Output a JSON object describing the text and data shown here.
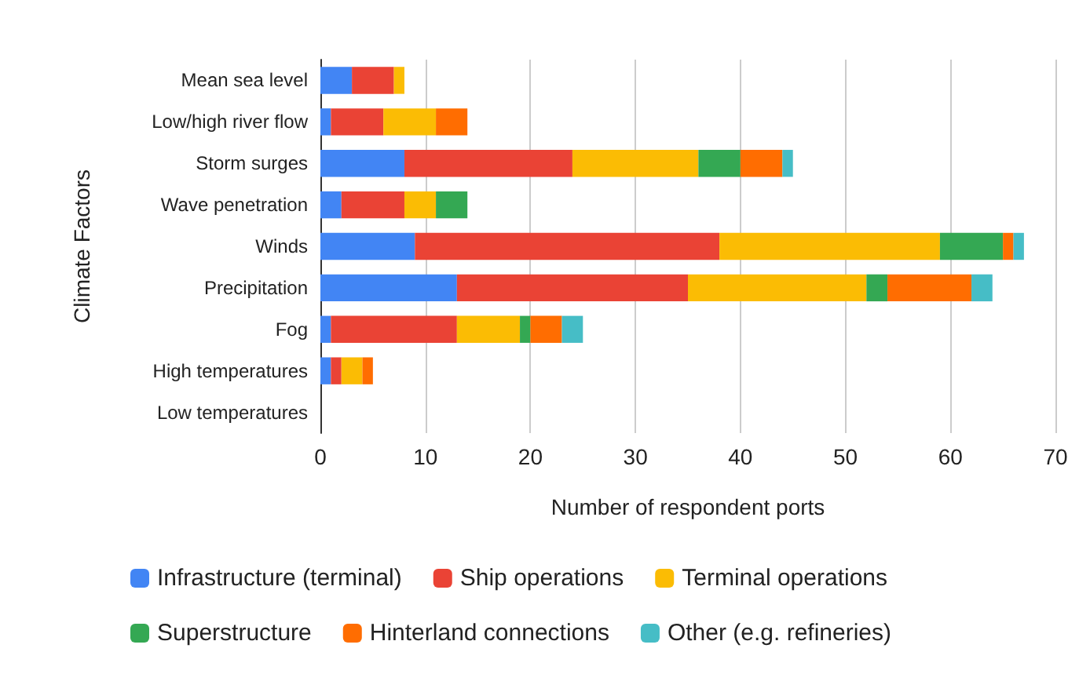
{
  "chart_data": {
    "type": "bar",
    "orientation": "horizontal",
    "stacked": true,
    "xlabel": "Number of respondent ports",
    "ylabel": "Climate Factors",
    "categories": [
      "Mean sea level",
      "Low/high river flow",
      "Storm surges",
      "Wave penetration",
      "Winds",
      "Precipitation",
      "Fog",
      "High temperatures",
      "Low temperatures"
    ],
    "series": [
      {
        "name": "Infrastructure (terminal)",
        "color": "#4285f4",
        "values": [
          3,
          1,
          8,
          2,
          9,
          13,
          1,
          1,
          0
        ]
      },
      {
        "name": "Ship operations",
        "color": "#ea4335",
        "values": [
          4,
          5,
          16,
          6,
          29,
          22,
          12,
          1,
          0
        ]
      },
      {
        "name": "Terminal operations",
        "color": "#fbbc04",
        "values": [
          1,
          5,
          12,
          3,
          21,
          17,
          6,
          2,
          0
        ]
      },
      {
        "name": "Superstructure",
        "color": "#34a853",
        "values": [
          0,
          0,
          4,
          3,
          6,
          2,
          1,
          0,
          0
        ]
      },
      {
        "name": "Hinterland connections",
        "color": "#ff6d01",
        "values": [
          0,
          3,
          4,
          0,
          1,
          8,
          3,
          1,
          0
        ]
      },
      {
        "name": "Other (e.g. refineries)",
        "color": "#46bdc6",
        "values": [
          0,
          0,
          1,
          0,
          1,
          2,
          2,
          0,
          0
        ]
      }
    ],
    "xlim": [
      0,
      70
    ],
    "xticks": [
      0,
      10,
      20,
      30,
      40,
      50,
      60,
      70
    ],
    "grid": "x",
    "legend": "bottom"
  }
}
